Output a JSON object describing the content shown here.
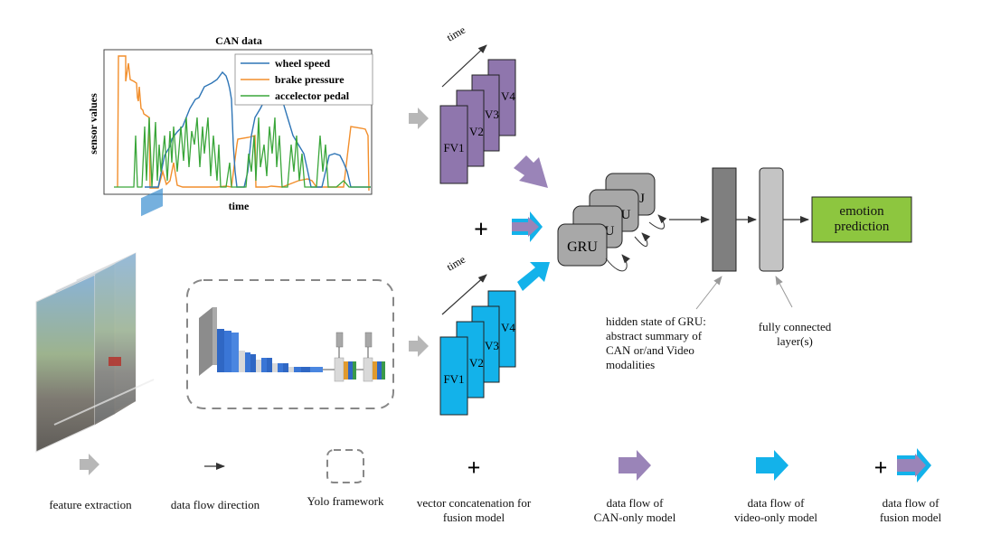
{
  "can_chart": {
    "title": "CAN data",
    "xlabel": "time",
    "ylabel": "sensor values",
    "legend": [
      "wheel speed",
      "brake pressure",
      "accelector pedal"
    ],
    "colors": {
      "wheel_speed": "#2e75b6",
      "brake_pressure": "#f28e2b",
      "accel_pedal": "#3aa63a"
    }
  },
  "time_labels": {
    "top": "time",
    "bottom": "time"
  },
  "frames_top": [
    "FV1",
    "V2",
    "V3",
    "V4"
  ],
  "frames_bottom": [
    "FV1",
    "V2",
    "V3",
    "V4"
  ],
  "gru_label": "GRU",
  "gru_stack_partial": [
    "U",
    "U",
    "J"
  ],
  "emotion_box": "emotion prediction",
  "annotations": {
    "hidden_state": [
      "hidden state of GRU:",
      "abstract summary of",
      "CAN or/and Video",
      "modalities"
    ],
    "fully_connected": [
      "fully connected",
      "layer(s)"
    ]
  },
  "legend": {
    "feature_extraction": "feature extraction",
    "data_flow_direction": "data flow direction",
    "yolo": "Yolo framework",
    "concat": [
      "vector concatenation for",
      "fusion model"
    ],
    "can_only": [
      "data flow of",
      "CAN-only model"
    ],
    "video_only": [
      "data flow of",
      "video-only model"
    ],
    "fusion": [
      "data flow of",
      "fusion model"
    ]
  },
  "colors": {
    "purple": "#8f76ad",
    "purple_arrow": "#9a84b8",
    "blue": "#13b2ea",
    "gray_arrow": "#b7b7b7",
    "green_box": "#8dc63f",
    "dark_gray": "#7f7f7f",
    "light_gray": "#c4c4c4"
  }
}
